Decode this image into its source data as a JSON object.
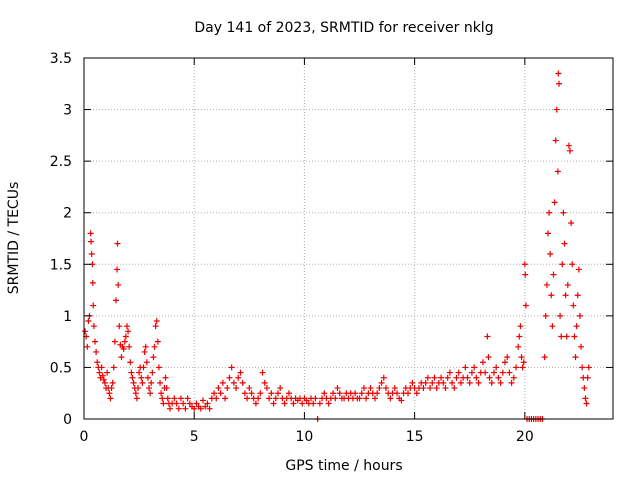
{
  "chart_data": {
    "type": "scatter",
    "title": "Day 141 of 2023, SRMTID for receiver nklg",
    "xlabel": "GPS time / hours",
    "ylabel": "SRMTID / TECUs",
    "xlim": [
      0,
      24
    ],
    "ylim": [
      0,
      3.5
    ],
    "xticks": [
      0,
      5,
      10,
      15,
      20
    ],
    "xtick_labels": [
      "0",
      "5",
      "10",
      "15",
      "20"
    ],
    "yticks": [
      0,
      0.5,
      1,
      1.5,
      2,
      2.5,
      3,
      3.5
    ],
    "ytick_labels": [
      "0",
      "0.5",
      "1",
      "1.5",
      "2",
      "2.5",
      "3",
      "3.5"
    ],
    "grid": true,
    "marker": "+",
    "color": "#ee0000",
    "series": [
      {
        "name": "SRMTID",
        "points": [
          [
            0.05,
            0.85
          ],
          [
            0.1,
            0.8
          ],
          [
            0.15,
            0.7
          ],
          [
            0.2,
            0.95
          ],
          [
            0.25,
            1.0
          ],
          [
            0.3,
            1.8
          ],
          [
            0.32,
            1.72
          ],
          [
            0.35,
            1.6
          ],
          [
            0.38,
            1.5
          ],
          [
            0.4,
            1.32
          ],
          [
            0.42,
            1.1
          ],
          [
            0.45,
            0.9
          ],
          [
            0.5,
            0.75
          ],
          [
            0.55,
            0.65
          ],
          [
            0.6,
            0.55
          ],
          [
            0.65,
            0.5
          ],
          [
            0.7,
            0.45
          ],
          [
            0.75,
            0.4
          ],
          [
            0.8,
            0.5
          ],
          [
            0.85,
            0.42
          ],
          [
            0.9,
            0.38
          ],
          [
            0.95,
            0.35
          ],
          [
            1.0,
            0.3
          ],
          [
            1.05,
            0.45
          ],
          [
            1.1,
            0.3
          ],
          [
            1.15,
            0.25
          ],
          [
            1.2,
            0.2
          ],
          [
            1.25,
            0.3
          ],
          [
            1.3,
            0.35
          ],
          [
            1.35,
            0.5
          ],
          [
            1.4,
            0.75
          ],
          [
            1.45,
            1.15
          ],
          [
            1.5,
            1.45
          ],
          [
            1.52,
            1.7
          ],
          [
            1.55,
            1.3
          ],
          [
            1.6,
            0.9
          ],
          [
            1.65,
            0.72
          ],
          [
            1.7,
            0.6
          ],
          [
            1.75,
            0.7
          ],
          [
            1.8,
            0.68
          ],
          [
            1.85,
            0.75
          ],
          [
            1.9,
            0.8
          ],
          [
            1.95,
            0.9
          ],
          [
            2.0,
            0.85
          ],
          [
            2.05,
            0.7
          ],
          [
            2.1,
            0.55
          ],
          [
            2.15,
            0.45
          ],
          [
            2.2,
            0.4
          ],
          [
            2.25,
            0.35
          ],
          [
            2.3,
            0.3
          ],
          [
            2.35,
            0.25
          ],
          [
            2.4,
            0.2
          ],
          [
            2.45,
            0.3
          ],
          [
            2.5,
            0.45
          ],
          [
            2.55,
            0.5
          ],
          [
            2.6,
            0.4
          ],
          [
            2.65,
            0.35
          ],
          [
            2.7,
            0.5
          ],
          [
            2.75,
            0.65
          ],
          [
            2.8,
            0.7
          ],
          [
            2.85,
            0.55
          ],
          [
            2.9,
            0.4
          ],
          [
            2.95,
            0.3
          ],
          [
            3.0,
            0.25
          ],
          [
            3.05,
            0.35
          ],
          [
            3.1,
            0.45
          ],
          [
            3.15,
            0.6
          ],
          [
            3.2,
            0.7
          ],
          [
            3.25,
            0.9
          ],
          [
            3.3,
            0.95
          ],
          [
            3.35,
            0.75
          ],
          [
            3.4,
            0.5
          ],
          [
            3.45,
            0.35
          ],
          [
            3.5,
            0.25
          ],
          [
            3.55,
            0.2
          ],
          [
            3.6,
            0.15
          ],
          [
            3.65,
            0.3
          ],
          [
            3.7,
            0.4
          ],
          [
            3.75,
            0.3
          ],
          [
            3.8,
            0.2
          ],
          [
            3.85,
            0.15
          ],
          [
            3.9,
            0.1
          ],
          [
            4.0,
            0.15
          ],
          [
            4.1,
            0.2
          ],
          [
            4.2,
            0.15
          ],
          [
            4.3,
            0.1
          ],
          [
            4.4,
            0.2
          ],
          [
            4.5,
            0.15
          ],
          [
            4.6,
            0.1
          ],
          [
            4.7,
            0.2
          ],
          [
            4.8,
            0.15
          ],
          [
            4.9,
            0.12
          ],
          [
            5.0,
            0.1
          ],
          [
            5.1,
            0.15
          ],
          [
            5.2,
            0.12
          ],
          [
            5.3,
            0.1
          ],
          [
            5.4,
            0.18
          ],
          [
            5.5,
            0.12
          ],
          [
            5.6,
            0.15
          ],
          [
            5.7,
            0.1
          ],
          [
            5.8,
            0.2
          ],
          [
            5.9,
            0.25
          ],
          [
            6.0,
            0.2
          ],
          [
            6.1,
            0.3
          ],
          [
            6.2,
            0.25
          ],
          [
            6.3,
            0.35
          ],
          [
            6.4,
            0.2
          ],
          [
            6.5,
            0.3
          ],
          [
            6.6,
            0.4
          ],
          [
            6.7,
            0.5
          ],
          [
            6.8,
            0.35
          ],
          [
            6.9,
            0.3
          ],
          [
            7.0,
            0.4
          ],
          [
            7.1,
            0.45
          ],
          [
            7.2,
            0.35
          ],
          [
            7.3,
            0.25
          ],
          [
            7.4,
            0.2
          ],
          [
            7.5,
            0.3
          ],
          [
            7.6,
            0.25
          ],
          [
            7.7,
            0.2
          ],
          [
            7.8,
            0.15
          ],
          [
            7.9,
            0.2
          ],
          [
            8.0,
            0.25
          ],
          [
            8.1,
            0.45
          ],
          [
            8.2,
            0.35
          ],
          [
            8.3,
            0.3
          ],
          [
            8.4,
            0.2
          ],
          [
            8.5,
            0.25
          ],
          [
            8.6,
            0.15
          ],
          [
            8.7,
            0.2
          ],
          [
            8.8,
            0.25
          ],
          [
            8.9,
            0.3
          ],
          [
            9.0,
            0.2
          ],
          [
            9.1,
            0.15
          ],
          [
            9.2,
            0.2
          ],
          [
            9.3,
            0.25
          ],
          [
            9.4,
            0.2
          ],
          [
            9.5,
            0.15
          ],
          [
            9.6,
            0.2
          ],
          [
            9.7,
            0.18
          ],
          [
            9.8,
            0.2
          ],
          [
            9.9,
            0.15
          ],
          [
            10.0,
            0.2
          ],
          [
            10.1,
            0.18
          ],
          [
            10.2,
            0.15
          ],
          [
            10.3,
            0.2
          ],
          [
            10.4,
            0.15
          ],
          [
            10.5,
            0.2
          ],
          [
            10.6,
            0.0
          ],
          [
            10.7,
            0.15
          ],
          [
            10.8,
            0.2
          ],
          [
            10.9,
            0.25
          ],
          [
            11.0,
            0.2
          ],
          [
            11.1,
            0.15
          ],
          [
            11.2,
            0.2
          ],
          [
            11.3,
            0.25
          ],
          [
            11.4,
            0.2
          ],
          [
            11.5,
            0.3
          ],
          [
            11.6,
            0.25
          ],
          [
            11.7,
            0.2
          ],
          [
            11.8,
            0.2
          ],
          [
            11.9,
            0.25
          ],
          [
            12.0,
            0.2
          ],
          [
            12.1,
            0.25
          ],
          [
            12.2,
            0.2
          ],
          [
            12.3,
            0.25
          ],
          [
            12.4,
            0.2
          ],
          [
            12.5,
            0.2
          ],
          [
            12.6,
            0.25
          ],
          [
            12.7,
            0.3
          ],
          [
            12.8,
            0.2
          ],
          [
            12.9,
            0.25
          ],
          [
            13.0,
            0.3
          ],
          [
            13.1,
            0.25
          ],
          [
            13.2,
            0.2
          ],
          [
            13.3,
            0.25
          ],
          [
            13.4,
            0.3
          ],
          [
            13.5,
            0.35
          ],
          [
            13.6,
            0.4
          ],
          [
            13.7,
            0.3
          ],
          [
            13.8,
            0.25
          ],
          [
            13.9,
            0.2
          ],
          [
            14.0,
            0.25
          ],
          [
            14.1,
            0.3
          ],
          [
            14.2,
            0.25
          ],
          [
            14.3,
            0.2
          ],
          [
            14.4,
            0.18
          ],
          [
            14.5,
            0.25
          ],
          [
            14.6,
            0.3
          ],
          [
            14.7,
            0.25
          ],
          [
            14.8,
            0.3
          ],
          [
            14.9,
            0.35
          ],
          [
            15.0,
            0.3
          ],
          [
            15.1,
            0.25
          ],
          [
            15.2,
            0.3
          ],
          [
            15.3,
            0.35
          ],
          [
            15.4,
            0.3
          ],
          [
            15.5,
            0.35
          ],
          [
            15.6,
            0.4
          ],
          [
            15.7,
            0.3
          ],
          [
            15.8,
            0.35
          ],
          [
            15.9,
            0.4
          ],
          [
            16.0,
            0.3
          ],
          [
            16.1,
            0.35
          ],
          [
            16.2,
            0.4
          ],
          [
            16.3,
            0.35
          ],
          [
            16.4,
            0.3
          ],
          [
            16.5,
            0.4
          ],
          [
            16.6,
            0.45
          ],
          [
            16.7,
            0.35
          ],
          [
            16.8,
            0.3
          ],
          [
            16.9,
            0.4
          ],
          [
            17.0,
            0.45
          ],
          [
            17.1,
            0.35
          ],
          [
            17.2,
            0.4
          ],
          [
            17.3,
            0.5
          ],
          [
            17.4,
            0.4
          ],
          [
            17.5,
            0.35
          ],
          [
            17.6,
            0.45
          ],
          [
            17.7,
            0.5
          ],
          [
            17.8,
            0.4
          ],
          [
            17.9,
            0.35
          ],
          [
            18.0,
            0.45
          ],
          [
            18.1,
            0.55
          ],
          [
            18.2,
            0.45
          ],
          [
            18.3,
            0.8
          ],
          [
            18.35,
            0.6
          ],
          [
            18.4,
            0.4
          ],
          [
            18.5,
            0.35
          ],
          [
            18.6,
            0.45
          ],
          [
            18.7,
            0.5
          ],
          [
            18.8,
            0.4
          ],
          [
            18.9,
            0.35
          ],
          [
            19.0,
            0.45
          ],
          [
            19.1,
            0.55
          ],
          [
            19.2,
            0.6
          ],
          [
            19.3,
            0.45
          ],
          [
            19.4,
            0.35
          ],
          [
            19.5,
            0.4
          ],
          [
            19.6,
            0.5
          ],
          [
            19.7,
            0.7
          ],
          [
            19.75,
            0.8
          ],
          [
            19.8,
            0.9
          ],
          [
            19.85,
            0.6
          ],
          [
            19.9,
            0.5
          ],
          [
            19.95,
            0.55
          ],
          [
            20.0,
            1.5
          ],
          [
            20.02,
            1.4
          ],
          [
            20.05,
            1.1
          ],
          [
            20.1,
            0.0
          ],
          [
            20.2,
            0.0
          ],
          [
            20.3,
            0.0
          ],
          [
            20.4,
            0.0
          ],
          [
            20.5,
            0.0
          ],
          [
            20.6,
            0.0
          ],
          [
            20.7,
            0.0
          ],
          [
            20.8,
            0.0
          ],
          [
            20.9,
            0.6
          ],
          [
            20.95,
            1.0
          ],
          [
            21.0,
            1.3
          ],
          [
            21.05,
            1.8
          ],
          [
            21.1,
            2.0
          ],
          [
            21.15,
            1.6
          ],
          [
            21.2,
            1.2
          ],
          [
            21.25,
            0.9
          ],
          [
            21.3,
            1.4
          ],
          [
            21.35,
            2.1
          ],
          [
            21.4,
            2.7
          ],
          [
            21.45,
            3.0
          ],
          [
            21.5,
            2.4
          ],
          [
            21.52,
            3.35
          ],
          [
            21.55,
            3.25
          ],
          [
            21.6,
            1.0
          ],
          [
            21.65,
            0.8
          ],
          [
            21.7,
            1.5
          ],
          [
            21.75,
            2.0
          ],
          [
            21.8,
            1.7
          ],
          [
            21.85,
            1.2
          ],
          [
            21.9,
            0.8
          ],
          [
            21.95,
            1.3
          ],
          [
            22.0,
            2.65
          ],
          [
            22.05,
            2.6
          ],
          [
            22.1,
            1.9
          ],
          [
            22.15,
            1.5
          ],
          [
            22.2,
            1.1
          ],
          [
            22.25,
            0.8
          ],
          [
            22.3,
            0.6
          ],
          [
            22.35,
            0.9
          ],
          [
            22.4,
            1.2
          ],
          [
            22.45,
            1.45
          ],
          [
            22.5,
            1.0
          ],
          [
            22.55,
            0.7
          ],
          [
            22.6,
            0.5
          ],
          [
            22.65,
            0.4
          ],
          [
            22.7,
            0.3
          ],
          [
            22.75,
            0.2
          ],
          [
            22.8,
            0.15
          ],
          [
            22.85,
            0.4
          ],
          [
            22.9,
            0.5
          ]
        ]
      }
    ]
  }
}
